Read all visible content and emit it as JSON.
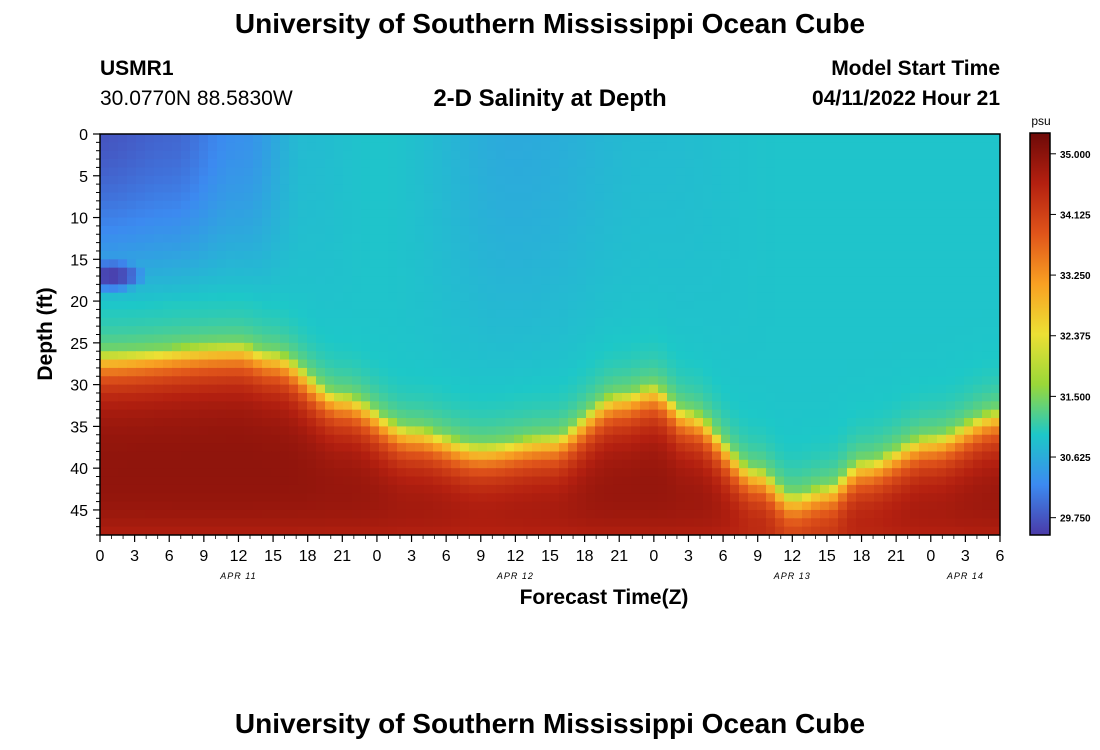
{
  "header": {
    "title": "University of Southern Mississippi Ocean Cube",
    "station_id": "USMR1",
    "station_coords": "30.0770N  88.5830W",
    "plot_title": "2-D Salinity at Depth",
    "model_start_label": "Model Start Time",
    "model_start_value": "04/11/2022 Hour 21"
  },
  "footer": {
    "title": "University of Southern Mississippi Ocean Cube"
  },
  "chart_data": {
    "type": "heatmap",
    "title": "2-D Salinity at Depth",
    "xlabel": "Forecast Time(Z)",
    "ylabel": "Depth (ft)",
    "ylim": [
      0,
      48
    ],
    "y_ticks": [
      0,
      5,
      10,
      15,
      20,
      25,
      30,
      35,
      40,
      45
    ],
    "x_hours_range": [
      0,
      78
    ],
    "x_tick_labels": [
      "0",
      "3",
      "6",
      "9",
      "12",
      "15",
      "18",
      "21",
      "0",
      "3",
      "6",
      "9",
      "12",
      "15",
      "18",
      "21",
      "0",
      "3",
      "6",
      "9",
      "12",
      "15",
      "18",
      "21",
      "0",
      "3",
      "6"
    ],
    "date_labels": [
      {
        "label": "APR 11",
        "hour": 12
      },
      {
        "label": "APR 12",
        "hour": 36
      },
      {
        "label": "APR 13",
        "hour": 60
      },
      {
        "label": "APR 14",
        "hour": 75
      }
    ],
    "colorbar": {
      "unit": "psu",
      "range": [
        29.5,
        35.3
      ],
      "ticks": [
        35.0,
        34.125,
        33.25,
        32.375,
        31.5,
        30.625,
        29.75
      ],
      "tick_labels": [
        "35.000",
        "34.125",
        "33.250",
        "32.375",
        "31.500",
        "30.625",
        "29.750"
      ],
      "colors": [
        "#4a3aa8",
        "#3c8af0",
        "#1dc8c8",
        "#9ad838",
        "#ece034",
        "#f8a022",
        "#e0541a",
        "#b42010",
        "#6e0a08"
      ]
    },
    "halocline_depth_ft": [
      {
        "hour": 0,
        "depth": 26
      },
      {
        "hour": 12,
        "depth": 25
      },
      {
        "hour": 15,
        "depth": 26
      },
      {
        "hour": 21,
        "depth": 31
      },
      {
        "hour": 27,
        "depth": 35
      },
      {
        "hour": 33,
        "depth": 37
      },
      {
        "hour": 39,
        "depth": 36
      },
      {
        "hour": 45,
        "depth": 31
      },
      {
        "hour": 48,
        "depth": 30
      },
      {
        "hour": 51,
        "depth": 33
      },
      {
        "hour": 57,
        "depth": 40
      },
      {
        "hour": 60,
        "depth": 43
      },
      {
        "hour": 63,
        "depth": 42
      },
      {
        "hour": 66,
        "depth": 39
      },
      {
        "hour": 72,
        "depth": 36
      },
      {
        "hour": 78,
        "depth": 33
      }
    ],
    "surface_salinity_psu": [
      {
        "hour": 0,
        "value": 29.75
      },
      {
        "hour": 6,
        "value": 29.9
      },
      {
        "hour": 12,
        "value": 30.3
      },
      {
        "hour": 18,
        "value": 30.8
      },
      {
        "hour": 24,
        "value": 30.9
      },
      {
        "hour": 36,
        "value": 30.6
      },
      {
        "hour": 48,
        "value": 30.8
      },
      {
        "hour": 60,
        "value": 30.9
      },
      {
        "hour": 78,
        "value": 30.9
      }
    ],
    "fresh_core": {
      "hour": 1,
      "depth": 17,
      "value": 29.5
    }
  }
}
